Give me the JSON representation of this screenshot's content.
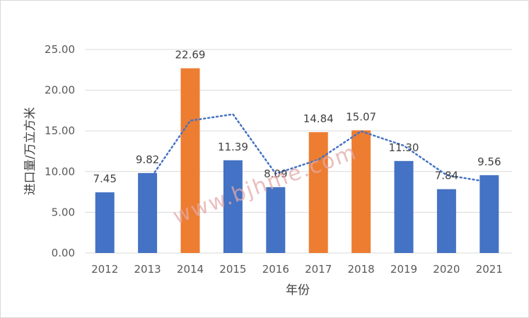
{
  "chart_data": {
    "type": "bar",
    "categories": [
      "2012",
      "2013",
      "2014",
      "2015",
      "2016",
      "2017",
      "2018",
      "2019",
      "2020",
      "2021"
    ],
    "values": [
      7.45,
      9.82,
      22.69,
      11.39,
      8.09,
      14.84,
      15.07,
      11.3,
      7.84,
      9.56
    ],
    "value_labels": [
      "7.45",
      "9.82",
      "22.69",
      "11.39",
      "8.09",
      "14.84",
      "15.07",
      "11.30",
      "7.84",
      "9.56"
    ],
    "bar_colors": [
      "#4472C4",
      "#4472C4",
      "#ED7D31",
      "#4472C4",
      "#4472C4",
      "#ED7D31",
      "#ED7D31",
      "#4472C4",
      "#4472C4",
      "#4472C4"
    ],
    "trendline": {
      "type": "moving-average",
      "period": 2,
      "color": "#4472C4",
      "style": "dotted"
    },
    "xlabel": "年份",
    "ylabel": "进口量/万立方米",
    "ylim": [
      0,
      25
    ],
    "yticks": [
      "0.00",
      "5.00",
      "10.00",
      "15.00",
      "20.00",
      "25.00"
    ],
    "grid": true,
    "watermark": "www.bjhme.com"
  }
}
